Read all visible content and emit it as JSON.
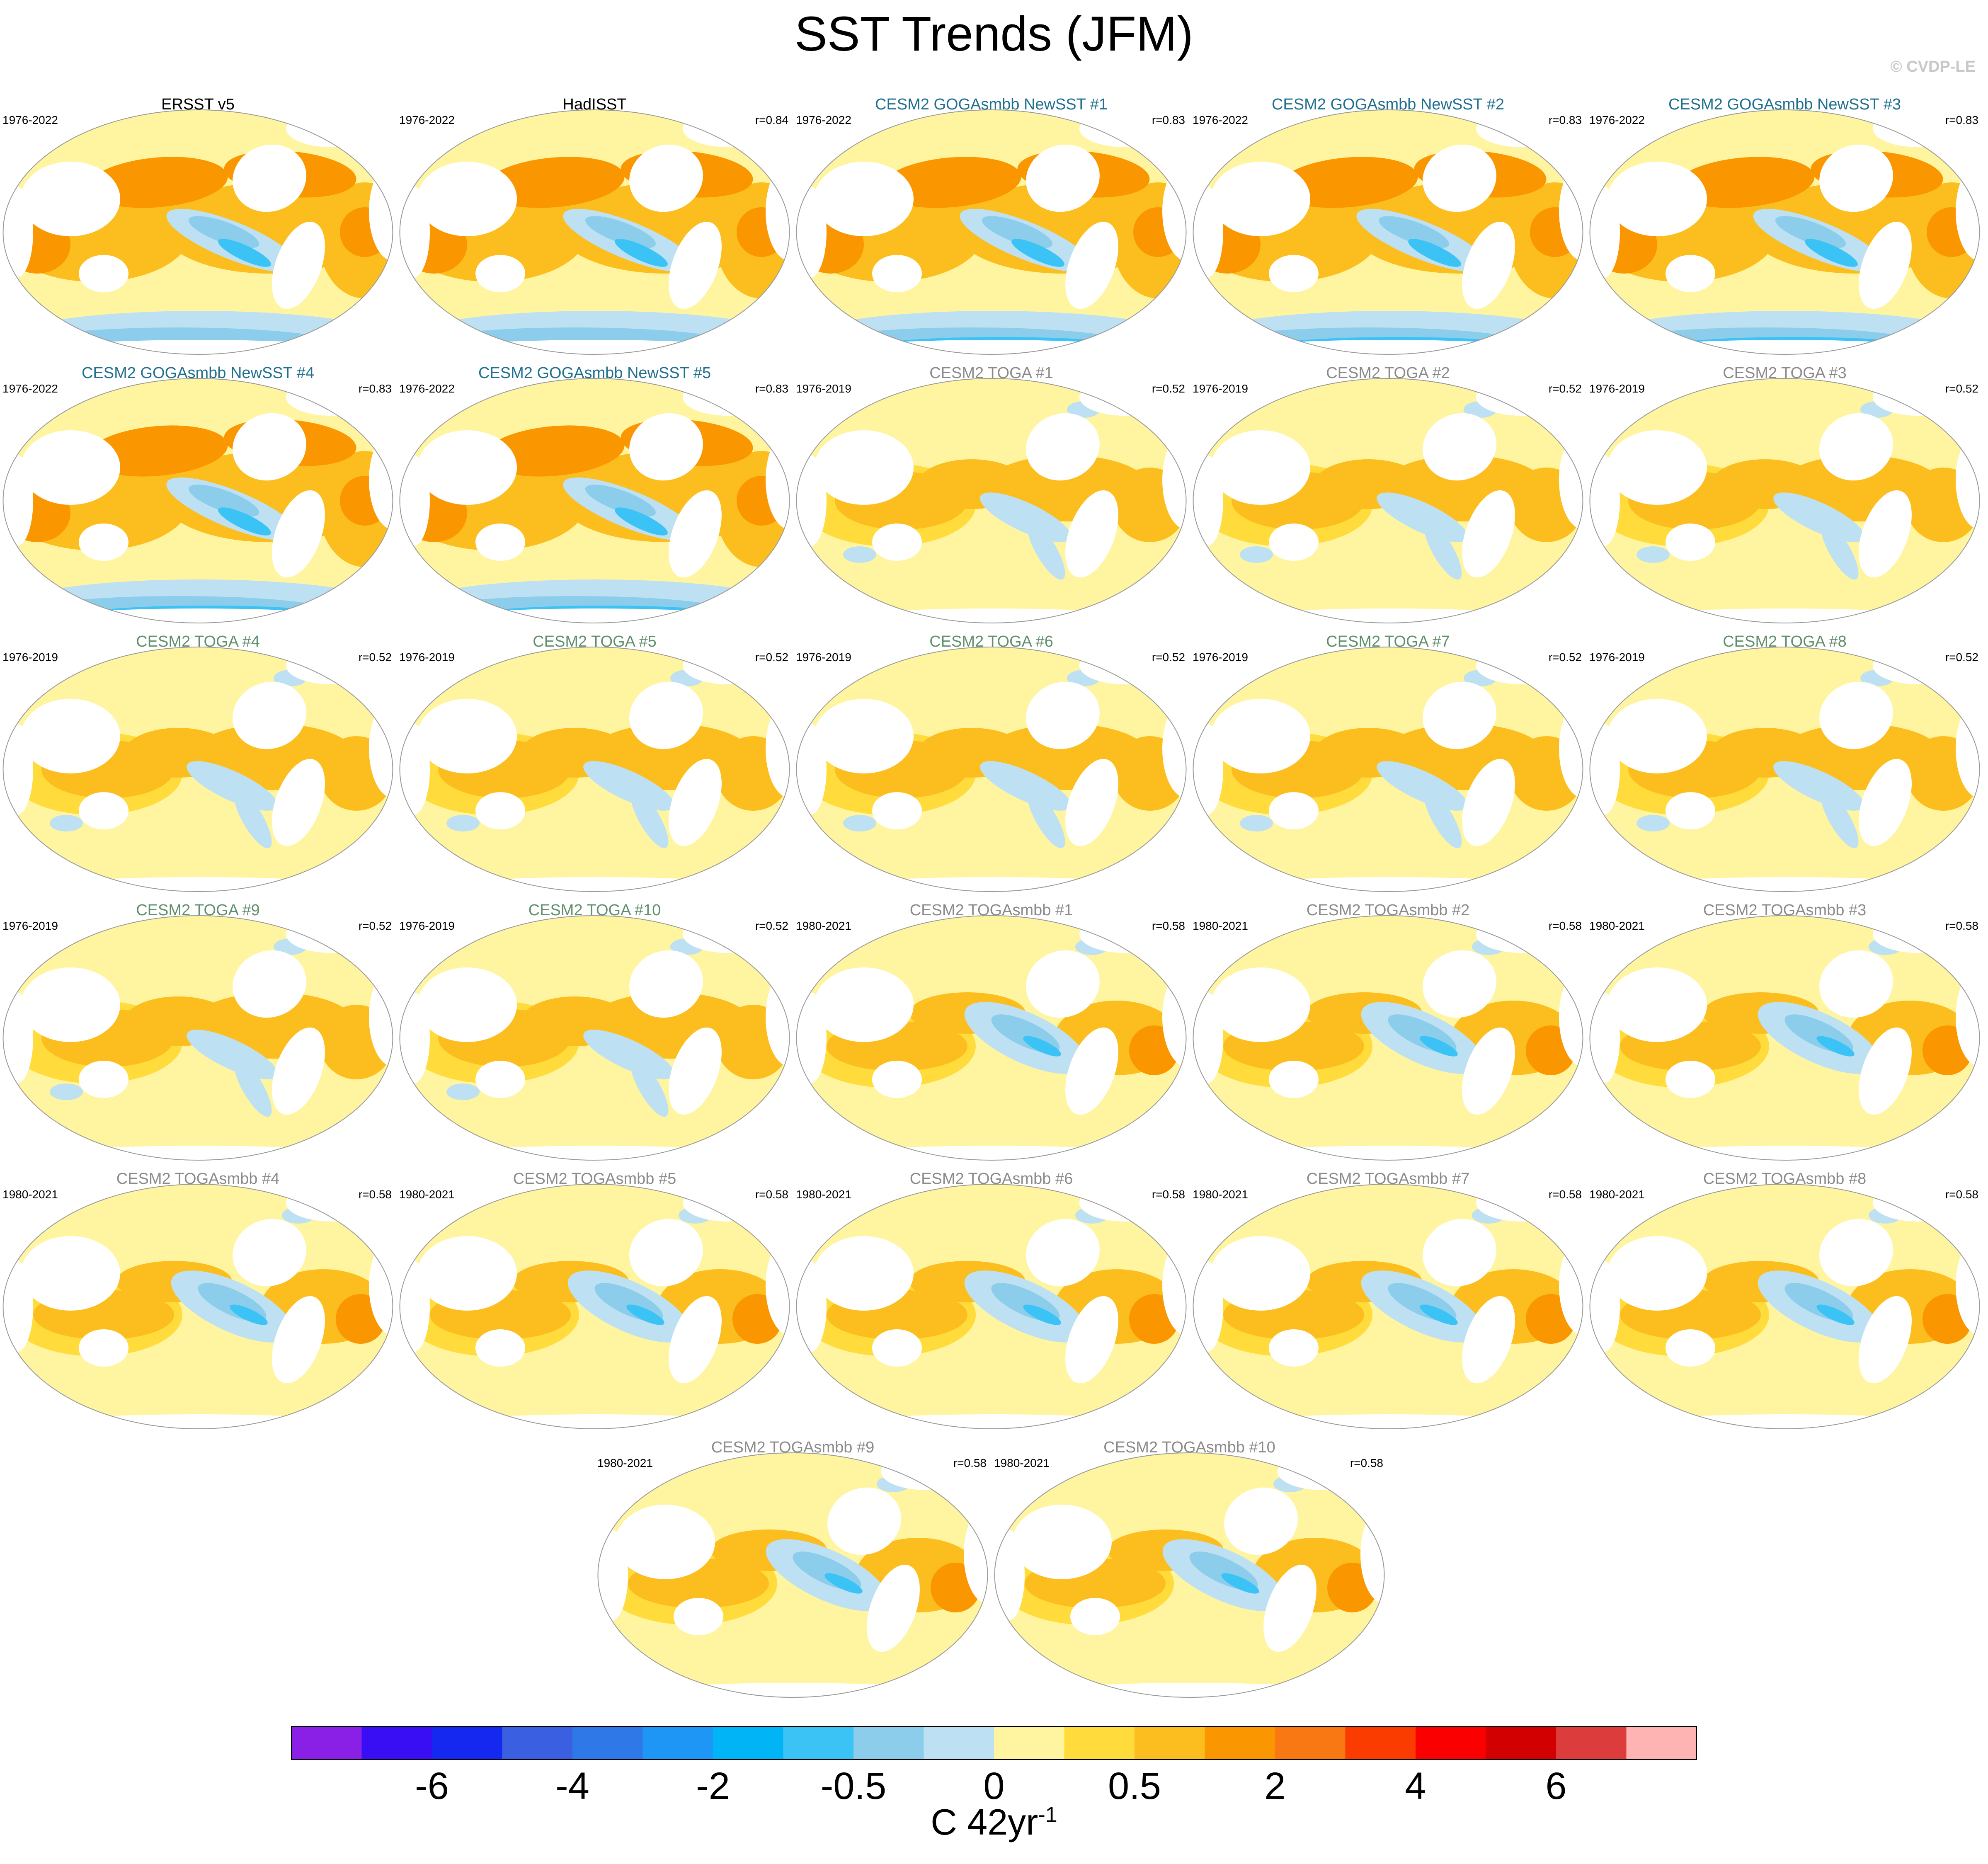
{
  "title": "SST Trends (JFM)",
  "credit": "© CVDP-LE",
  "panels": [
    {
      "title": "ERSST v5",
      "period": "1976-2022",
      "corr": "",
      "title_color": "#000000",
      "pattern": "obs"
    },
    {
      "title": "HadISST",
      "period": "1976-2022",
      "corr": "r=0.84",
      "title_color": "#000000",
      "pattern": "obs"
    },
    {
      "title": "CESM2 GOGAsmbb NewSST #1",
      "period": "1976-2022",
      "corr": "r=0.83",
      "title_color": "#1f6f8f",
      "pattern": "goga"
    },
    {
      "title": "CESM2 GOGAsmbb NewSST #2",
      "period": "1976-2022",
      "corr": "r=0.83",
      "title_color": "#1f6f8f",
      "pattern": "goga"
    },
    {
      "title": "CESM2 GOGAsmbb NewSST #3",
      "period": "1976-2022",
      "corr": "r=0.83",
      "title_color": "#1f6f8f",
      "pattern": "goga"
    },
    {
      "title": "CESM2 GOGAsmbb NewSST #4",
      "period": "1976-2022",
      "corr": "r=0.83",
      "title_color": "#1f6f8f",
      "pattern": "goga"
    },
    {
      "title": "CESM2 GOGAsmbb NewSST #5",
      "period": "1976-2022",
      "corr": "r=0.83",
      "title_color": "#1f6f8f",
      "pattern": "goga"
    },
    {
      "title": "CESM2 TOGA #1",
      "period": "1976-2019",
      "corr": "r=0.52",
      "title_color": "#8a8a8a",
      "pattern": "toga"
    },
    {
      "title": "CESM2 TOGA #2",
      "period": "1976-2019",
      "corr": "r=0.52",
      "title_color": "#8a8a8a",
      "pattern": "toga"
    },
    {
      "title": "CESM2 TOGA #3",
      "period": "1976-2019",
      "corr": "r=0.52",
      "title_color": "#8a8a8a",
      "pattern": "toga"
    },
    {
      "title": "CESM2 TOGA #4",
      "period": "1976-2019",
      "corr": "r=0.52",
      "title_color": "#5f8f6a",
      "pattern": "toga"
    },
    {
      "title": "CESM2 TOGA #5",
      "period": "1976-2019",
      "corr": "r=0.52",
      "title_color": "#5f8f6a",
      "pattern": "toga"
    },
    {
      "title": "CESM2 TOGA #6",
      "period": "1976-2019",
      "corr": "r=0.52",
      "title_color": "#5f8f6a",
      "pattern": "toga"
    },
    {
      "title": "CESM2 TOGA #7",
      "period": "1976-2019",
      "corr": "r=0.52",
      "title_color": "#5f8f6a",
      "pattern": "toga"
    },
    {
      "title": "CESM2 TOGA #8",
      "period": "1976-2019",
      "corr": "r=0.52",
      "title_color": "#5f8f6a",
      "pattern": "toga"
    },
    {
      "title": "CESM2 TOGA #9",
      "period": "1976-2019",
      "corr": "r=0.52",
      "title_color": "#5f8f6a",
      "pattern": "toga"
    },
    {
      "title": "CESM2 TOGA #10",
      "period": "1976-2019",
      "corr": "r=0.52",
      "title_color": "#5f8f6a",
      "pattern": "toga"
    },
    {
      "title": "CESM2 TOGAsmbb #1",
      "period": "1980-2021",
      "corr": "r=0.58",
      "title_color": "#8a8a8a",
      "pattern": "smbb"
    },
    {
      "title": "CESM2 TOGAsmbb #2",
      "period": "1980-2021",
      "corr": "r=0.58",
      "title_color": "#8a8a8a",
      "pattern": "smbb"
    },
    {
      "title": "CESM2 TOGAsmbb #3",
      "period": "1980-2021",
      "corr": "r=0.58",
      "title_color": "#8a8a8a",
      "pattern": "smbb"
    },
    {
      "title": "CESM2 TOGAsmbb #4",
      "period": "1980-2021",
      "corr": "r=0.58",
      "title_color": "#8a8a8a",
      "pattern": "smbb"
    },
    {
      "title": "CESM2 TOGAsmbb #5",
      "period": "1980-2021",
      "corr": "r=0.58",
      "title_color": "#8a8a8a",
      "pattern": "smbb"
    },
    {
      "title": "CESM2 TOGAsmbb #6",
      "period": "1980-2021",
      "corr": "r=0.58",
      "title_color": "#8a8a8a",
      "pattern": "smbb"
    },
    {
      "title": "CESM2 TOGAsmbb #7",
      "period": "1980-2021",
      "corr": "r=0.58",
      "title_color": "#8a8a8a",
      "pattern": "smbb"
    },
    {
      "title": "CESM2 TOGAsmbb #8",
      "period": "1980-2021",
      "corr": "r=0.58",
      "title_color": "#8a8a8a",
      "pattern": "smbb"
    },
    {
      "title": "CESM2 TOGAsmbb #9",
      "period": "1980-2021",
      "corr": "r=0.58",
      "title_color": "#8a8a8a",
      "pattern": "smbb"
    },
    {
      "title": "CESM2 TOGAsmbb #10",
      "period": "1980-2021",
      "corr": "r=0.58",
      "title_color": "#8a8a8a",
      "pattern": "smbb"
    }
  ],
  "colorbar": {
    "colors": [
      "#8a1fe6",
      "#3a0ef5",
      "#1428f0",
      "#3a5fe0",
      "#2e78e8",
      "#1e96f5",
      "#00b4f5",
      "#3cc3f5",
      "#8ccdec",
      "#bde1f2",
      "#fff5a0",
      "#ffdc3c",
      "#fcbe1e",
      "#fa9600",
      "#fa7814",
      "#fa3c00",
      "#fa0000",
      "#d20000",
      "#dc3c3c",
      "#ffb4b4"
    ],
    "tick_labels": [
      "-6",
      "-4",
      "-2",
      "-0.5",
      "0",
      "0.5",
      "2",
      "4",
      "6"
    ],
    "unit_base": "C 42yr",
    "unit_sup": "-1"
  },
  "pattern_colors": {
    "ocean_bg": "#fff5a0",
    "warm1": "#ffdc3c",
    "warm2": "#fcbe1e",
    "warm3": "#fa9600",
    "cool1": "#bde1f2",
    "cool2": "#8ccdec",
    "cool3": "#3cc3f5",
    "land": "#ffffff"
  }
}
